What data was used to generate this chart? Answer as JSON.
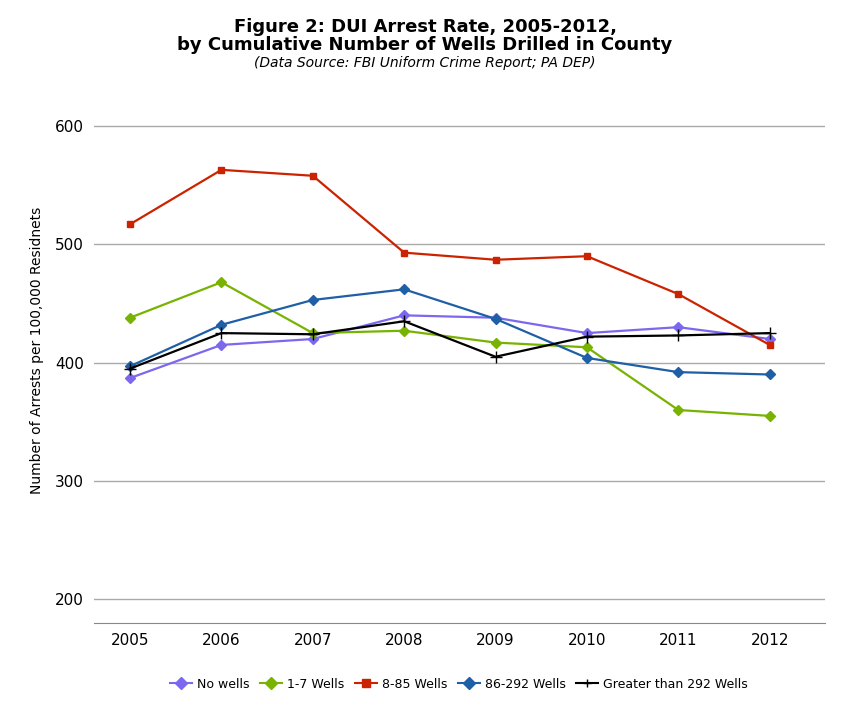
{
  "title_line1": "Figure 2: DUI Arrest Rate, 2005-2012,",
  "title_line2": "by Cumulative Number of Wells Drilled in County",
  "subtitle": "(Data Source: FBI Uniform Crime Report; PA DEP)",
  "ylabel": "Number of Arrests per 100,000 Residnets",
  "years": [
    2005,
    2006,
    2007,
    2008,
    2009,
    2010,
    2011,
    2012
  ],
  "series": {
    "No wells": {
      "values": [
        387,
        415,
        420,
        440,
        438,
        425,
        430,
        420
      ],
      "color": "#7B68EE",
      "marker": "D",
      "markersize": 5
    },
    "1-7 Wells": {
      "values": [
        438,
        468,
        425,
        427,
        417,
        413,
        360,
        355
      ],
      "color": "#77B300",
      "marker": "D",
      "markersize": 5
    },
    "8-85 Wells": {
      "values": [
        517,
        563,
        558,
        493,
        487,
        490,
        458,
        415
      ],
      "color": "#CC2200",
      "marker": "s",
      "markersize": 5
    },
    "86-292 Wells": {
      "values": [
        397,
        432,
        453,
        462,
        437,
        404,
        392,
        390
      ],
      "color": "#1F5FA6",
      "marker": "D",
      "markersize": 5
    },
    "Greater than 292 Wells": {
      "values": [
        395,
        425,
        424,
        435,
        405,
        422,
        423,
        425
      ],
      "color": "#000000",
      "marker": "+",
      "markersize": 8
    }
  },
  "ylim": [
    180,
    640
  ],
  "yticks": [
    200,
    300,
    400,
    500,
    600
  ],
  "background_color": "#ffffff",
  "grid_color": "#aaaaaa",
  "legend_labels": [
    "No wells",
    "1-7 Wells",
    "8-85 Wells",
    "86-292 Wells",
    "Greater than 292 Wells"
  ],
  "legend_colors": [
    "#7B68EE",
    "#77B300",
    "#CC2200",
    "#1F5FA6",
    "#000000"
  ],
  "legend_markers": [
    "D",
    "D",
    "s",
    "D",
    "+"
  ]
}
